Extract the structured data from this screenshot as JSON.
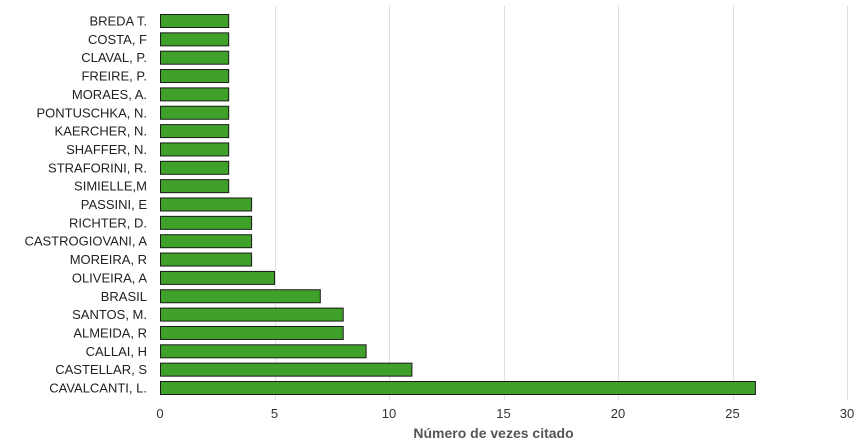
{
  "chart_data": {
    "type": "bar",
    "orientation": "horizontal",
    "categories": [
      "BREDA T.",
      "COSTA, F",
      "CLAVAL, P.",
      "FREIRE, P.",
      "MORAES, A.",
      "PONTUSCHKA, N.",
      "KAERCHER, N.",
      "SHAFFER, N.",
      "STRAFORINI, R.",
      "SIMIELLE,M",
      "PASSINI, E",
      "RICHTER, D.",
      "CASTROGIOVANI, A",
      "MOREIRA, R",
      "OLIVEIRA, A",
      "BRASIL",
      "SANTOS, M.",
      "ALMEIDA, R",
      "CALLAI, H",
      "CASTELLAR, S",
      "CAVALCANTI, L."
    ],
    "values": [
      3,
      3,
      3,
      3,
      3,
      3,
      3,
      3,
      3,
      3,
      4,
      4,
      4,
      4,
      5,
      7,
      8,
      8,
      9,
      11,
      26
    ],
    "xlabel": "Número de vezes citado",
    "ylabel": "",
    "xlim": [
      0,
      30
    ],
    "xticks": [
      0,
      5,
      10,
      15,
      20,
      25,
      30
    ],
    "grid": "vertical",
    "bar_color": "#3fa12a",
    "bar_edge_color": "#1a1a1a",
    "grid_color": "#e0e0e0"
  }
}
